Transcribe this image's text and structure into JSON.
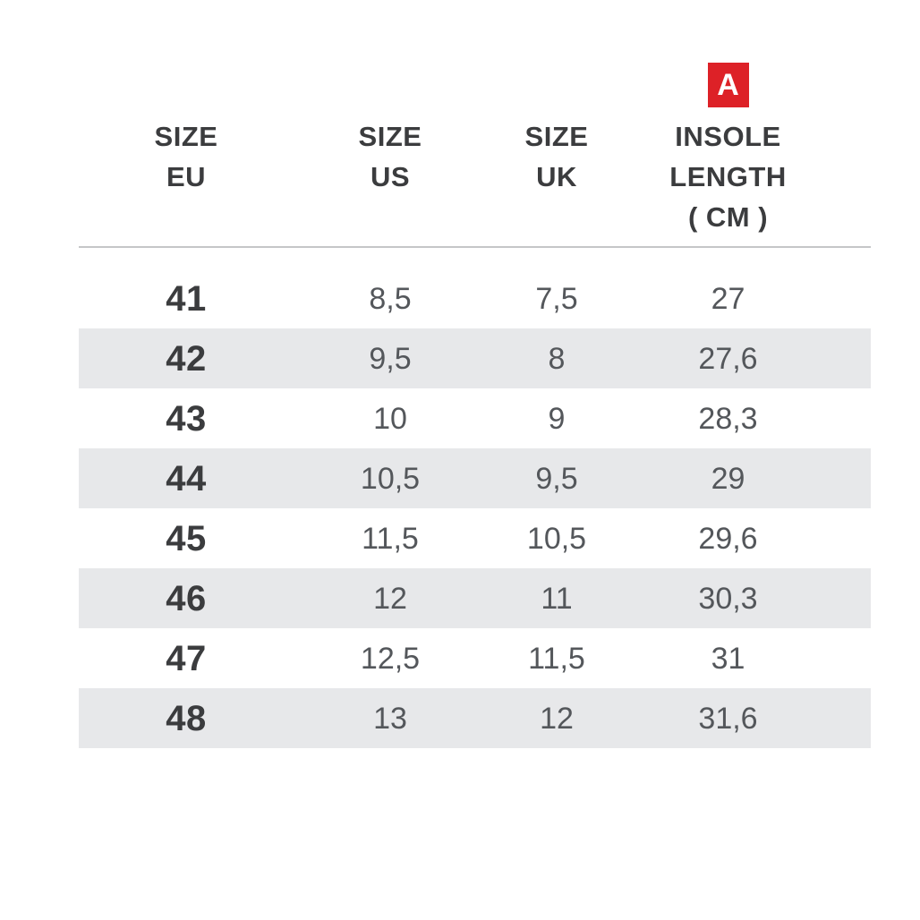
{
  "page": {
    "background": "#ffffff"
  },
  "badge": {
    "label": "A",
    "color": "#dd2127",
    "text_color": "#ffffff"
  },
  "table": {
    "columns": [
      {
        "id": "eu",
        "lines": [
          "SIZE",
          "EU"
        ]
      },
      {
        "id": "us",
        "lines": [
          "SIZE",
          "US"
        ]
      },
      {
        "id": "uk",
        "lines": [
          "SIZE",
          "UK"
        ]
      },
      {
        "id": "insole",
        "lines": [
          "INSOLE",
          "LENGTH",
          "( CM )"
        ]
      }
    ],
    "rows": [
      {
        "eu": "41",
        "us": "8,5",
        "uk": "7,5",
        "insole": "27"
      },
      {
        "eu": "42",
        "us": "9,5",
        "uk": "8",
        "insole": "27,6"
      },
      {
        "eu": "43",
        "us": "10",
        "uk": "9",
        "insole": "28,3"
      },
      {
        "eu": "44",
        "us": "10,5",
        "uk": "9,5",
        "insole": "29"
      },
      {
        "eu": "45",
        "us": "11,5",
        "uk": "10,5",
        "insole": "29,6"
      },
      {
        "eu": "46",
        "us": "12",
        "uk": "11",
        "insole": "30,3"
      },
      {
        "eu": "47",
        "us": "12,5",
        "uk": "11,5",
        "insole": "31"
      },
      {
        "eu": "48",
        "us": "13",
        "uk": "12",
        "insole": "31,6"
      }
    ],
    "colors": {
      "row_alt_background": "#e7e8ea",
      "divider": "#c5c6c8",
      "header_text": "#3b3c3e",
      "eu_text": "#3b3c3e",
      "value_text": "#54575b"
    }
  },
  "chart_data": {
    "type": "table",
    "title": "Shoe size conversion chart",
    "columns": [
      "SIZE EU",
      "SIZE US",
      "SIZE UK",
      "INSOLE LENGTH ( CM )"
    ],
    "rows": [
      [
        "41",
        "8,5",
        "7,5",
        "27"
      ],
      [
        "42",
        "9,5",
        "8",
        "27,6"
      ],
      [
        "43",
        "10",
        "9",
        "28,3"
      ],
      [
        "44",
        "10,5",
        "9,5",
        "29"
      ],
      [
        "45",
        "11,5",
        "10,5",
        "29,6"
      ],
      [
        "46",
        "12",
        "11",
        "30,3"
      ],
      [
        "47",
        "12,5",
        "11,5",
        "31"
      ],
      [
        "48",
        "13",
        "12",
        "31,6"
      ]
    ]
  }
}
